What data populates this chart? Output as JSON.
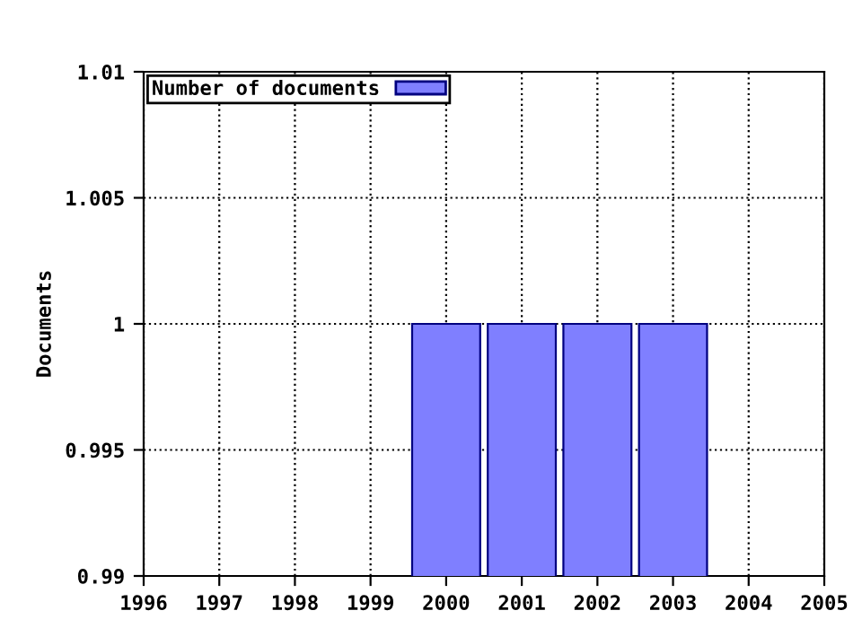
{
  "chart_data": {
    "type": "bar",
    "ylabel": "Documents",
    "x": [
      2000,
      2001,
      2002,
      2003
    ],
    "series": [
      {
        "name": "Number of documents",
        "color": "#7f7fff",
        "values": [
          1,
          1,
          1,
          1
        ]
      }
    ],
    "xlim": [
      1996,
      2005
    ],
    "xticks": [
      1996,
      1997,
      1998,
      1999,
      2000,
      2001,
      2002,
      2003,
      2004,
      2005
    ],
    "ylim": [
      0.99,
      1.01
    ],
    "yticks": [
      0.99,
      0.995,
      1,
      1.005,
      1.01
    ],
    "grid": true,
    "line_style": "dotted",
    "legend": "top left"
  }
}
